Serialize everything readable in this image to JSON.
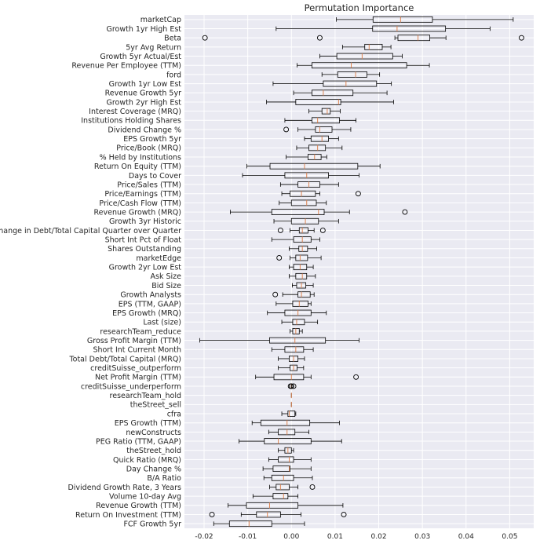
{
  "chart_data": {
    "type": "boxplot",
    "orientation": "horizontal",
    "title": "Permutation Importance",
    "xlabel": "",
    "ylabel": "",
    "xlim": [
      -0.0245,
      0.0555
    ],
    "xticks": [
      -0.02,
      -0.01,
      0.0,
      0.01,
      0.02,
      0.03,
      0.04,
      0.05
    ],
    "xtick_labels": [
      "-0.02",
      "-0.01",
      "0.00",
      "0.01",
      "0.02",
      "0.03",
      "0.04",
      "0.05"
    ],
    "grid": true,
    "colors": {
      "plot_background": "#eaeaf2",
      "grid": "#ffffff",
      "box": "#000000",
      "median": "#dd8452"
    },
    "features": [
      {
        "name": "marketCap",
        "wl": 0.0103,
        "q1": 0.0187,
        "med": 0.025,
        "q3": 0.0323,
        "wh": 0.0508,
        "fliers": []
      },
      {
        "name": "Growth 1yr High Est",
        "wl": -0.0035,
        "q1": 0.0186,
        "med": 0.0242,
        "q3": 0.0353,
        "wh": 0.0455,
        "fliers": []
      },
      {
        "name": "Beta",
        "wl": 0.0237,
        "q1": 0.0244,
        "med": 0.029,
        "q3": 0.0317,
        "wh": 0.0354,
        "fliers": [
          -0.0198,
          0.0065,
          0.0527
        ]
      },
      {
        "name": "5yr Avg Return",
        "wl": 0.0117,
        "q1": 0.0168,
        "med": 0.0178,
        "q3": 0.0208,
        "wh": 0.0228,
        "fliers": []
      },
      {
        "name": "Growth 5yr Actual/Est",
        "wl": 0.0065,
        "q1": 0.0104,
        "med": 0.0162,
        "q3": 0.0232,
        "wh": 0.0254,
        "fliers": []
      },
      {
        "name": "Revenue Per Employee (TTM)",
        "wl": 0.0013,
        "q1": 0.0047,
        "med": 0.0137,
        "q3": 0.0264,
        "wh": 0.0316,
        "fliers": []
      },
      {
        "name": "ford",
        "wl": 0.007,
        "q1": 0.0106,
        "med": 0.0147,
        "q3": 0.0173,
        "wh": 0.0202,
        "fliers": []
      },
      {
        "name": "Growth 1yr Low Est",
        "wl": -0.0042,
        "q1": 0.0073,
        "med": 0.0125,
        "q3": 0.0195,
        "wh": 0.0229,
        "fliers": []
      },
      {
        "name": "Revenue Growth 5yr",
        "wl": 0.0005,
        "q1": 0.0047,
        "med": 0.0073,
        "q3": 0.0141,
        "wh": 0.0219,
        "fliers": []
      },
      {
        "name": "Growth 2yr High Est",
        "wl": -0.0057,
        "q1": 0.001,
        "med": 0.0108,
        "q3": 0.0113,
        "wh": 0.0234,
        "fliers": []
      },
      {
        "name": "Interest Coverage (MRQ)",
        "wl": 0.004,
        "q1": 0.007,
        "med": 0.0082,
        "q3": 0.0089,
        "wh": 0.0112,
        "fliers": []
      },
      {
        "name": "Institutions Holding Shares",
        "wl": -0.0015,
        "q1": 0.0047,
        "med": 0.006,
        "q3": 0.011,
        "wh": 0.0148,
        "fliers": []
      },
      {
        "name": "Dividend Change %",
        "wl": 0.0015,
        "q1": 0.0055,
        "med": 0.0065,
        "q3": 0.0093,
        "wh": 0.0136,
        "fliers": [
          -0.0012
        ]
      },
      {
        "name": "EPS Growth 5yr",
        "wl": 0.003,
        "q1": 0.0045,
        "med": 0.007,
        "q3": 0.0085,
        "wh": 0.0108,
        "fliers": []
      },
      {
        "name": "Price/Book (MRQ)",
        "wl": 0.0012,
        "q1": 0.004,
        "med": 0.006,
        "q3": 0.0078,
        "wh": 0.0116,
        "fliers": []
      },
      {
        "name": "% Held by Institutions",
        "wl": -0.0012,
        "q1": 0.0038,
        "med": 0.0053,
        "q3": 0.0068,
        "wh": 0.0081,
        "fliers": []
      },
      {
        "name": "Return On Equity (TTM)",
        "wl": -0.0102,
        "q1": -0.0049,
        "med": 0.003,
        "q3": 0.0152,
        "wh": 0.0203,
        "fliers": []
      },
      {
        "name": "Days to Cover",
        "wl": -0.0112,
        "q1": -0.0015,
        "med": 0.0035,
        "q3": 0.0085,
        "wh": 0.0155,
        "fliers": []
      },
      {
        "name": "Price/Sales (TTM)",
        "wl": -0.0025,
        "q1": 0.0015,
        "med": 0.004,
        "q3": 0.0065,
        "wh": 0.0108,
        "fliers": []
      },
      {
        "name": "Price/Earnings (TTM)",
        "wl": -0.0022,
        "q1": -0.0003,
        "med": 0.0023,
        "q3": 0.0055,
        "wh": 0.0065,
        "fliers": [
          0.0153
        ]
      },
      {
        "name": "Price/Cash Flow (TTM)",
        "wl": -0.0028,
        "q1": 0.0,
        "med": 0.0035,
        "q3": 0.0057,
        "wh": 0.008,
        "fliers": []
      },
      {
        "name": "Revenue Growth (MRQ)",
        "wl": -0.014,
        "q1": -0.0045,
        "med": 0.0062,
        "q3": 0.0075,
        "wh": 0.0133,
        "fliers": [
          0.026
        ]
      },
      {
        "name": "Growth 3yr Historic",
        "wl": -0.004,
        "q1": 0.0,
        "med": 0.0032,
        "q3": 0.0062,
        "wh": 0.0108,
        "fliers": []
      },
      {
        "name": "Change in Debt/Total Capital Quarter over Quarter",
        "wl": -0.0003,
        "q1": 0.0018,
        "med": 0.0025,
        "q3": 0.0038,
        "wh": 0.0052,
        "fliers": [
          -0.0025,
          0.0072
        ]
      },
      {
        "name": "Short Int Pct of Float",
        "wl": -0.0045,
        "q1": 0.0005,
        "med": 0.0025,
        "q3": 0.0045,
        "wh": 0.0065,
        "fliers": []
      },
      {
        "name": "Shares Outstanding",
        "wl": -0.0005,
        "q1": 0.0017,
        "med": 0.0025,
        "q3": 0.0037,
        "wh": 0.0058,
        "fliers": []
      },
      {
        "name": "marketEdge",
        "wl": -0.0003,
        "q1": 0.001,
        "med": 0.002,
        "q3": 0.0037,
        "wh": 0.0068,
        "fliers": [
          -0.0028
        ]
      },
      {
        "name": "Growth 2yr Low Est",
        "wl": -0.0005,
        "q1": 0.0005,
        "med": 0.002,
        "q3": 0.0035,
        "wh": 0.005,
        "fliers": []
      },
      {
        "name": "Ask Size",
        "wl": -0.0005,
        "q1": 0.001,
        "med": 0.0025,
        "q3": 0.0035,
        "wh": 0.0055,
        "fliers": []
      },
      {
        "name": "Bid Size",
        "wl": 0.0002,
        "q1": 0.0012,
        "med": 0.0023,
        "q3": 0.0033,
        "wh": 0.005,
        "fliers": []
      },
      {
        "name": "Growth Analysts",
        "wl": -0.002,
        "q1": 0.0015,
        "med": 0.0023,
        "q3": 0.0043,
        "wh": 0.0052,
        "fliers": [
          -0.0037
        ]
      },
      {
        "name": "EPS (TTM, GAAP)",
        "wl": -0.0035,
        "q1": 0.0003,
        "med": 0.0018,
        "q3": 0.0038,
        "wh": 0.0045,
        "fliers": []
      },
      {
        "name": "EPS Growth (MRQ)",
        "wl": -0.0055,
        "q1": -0.0015,
        "med": 0.0015,
        "q3": 0.0045,
        "wh": 0.008,
        "fliers": []
      },
      {
        "name": "Last (size)",
        "wl": -0.0022,
        "q1": 0.0003,
        "med": 0.0012,
        "q3": 0.003,
        "wh": 0.006,
        "fliers": []
      },
      {
        "name": "researchTeam_reduce",
        "wl": -0.0003,
        "q1": 0.0003,
        "med": 0.001,
        "q3": 0.0018,
        "wh": 0.0025,
        "fliers": []
      },
      {
        "name": "Gross Profit Margin (TTM)",
        "wl": -0.021,
        "q1": -0.005,
        "med": 0.0008,
        "q3": 0.0078,
        "wh": 0.0155,
        "fliers": []
      },
      {
        "name": "Short Int Current Month",
        "wl": -0.0045,
        "q1": -0.0015,
        "med": 0.001,
        "q3": 0.0028,
        "wh": 0.005,
        "fliers": []
      },
      {
        "name": "Total Debt/Total Capital (MRQ)",
        "wl": -0.003,
        "q1": -0.0005,
        "med": 0.0005,
        "q3": 0.0015,
        "wh": 0.003,
        "fliers": []
      },
      {
        "name": "creditSuisse_outperform",
        "wl": -0.003,
        "q1": -0.0003,
        "med": 0.0005,
        "q3": 0.0013,
        "wh": 0.0028,
        "fliers": []
      },
      {
        "name": "Net Profit Margin (TTM)",
        "wl": -0.0082,
        "q1": -0.004,
        "med": 0.0,
        "q3": 0.0028,
        "wh": 0.0045,
        "fliers": [
          0.0148
        ]
      },
      {
        "name": "creditSuisse_underperform",
        "wl": 0.0,
        "q1": 0.0,
        "med": 0.0,
        "q3": 0.0,
        "wh": 0.0,
        "fliers": [
          -0.0002,
          0.0,
          0.0005
        ]
      },
      {
        "name": "researchTeam_hold",
        "wl": 0.0,
        "q1": 0.0,
        "med": 0.0,
        "q3": 0.0,
        "wh": 0.0,
        "fliers": []
      },
      {
        "name": "theStreet_sell",
        "wl": 0.0,
        "q1": 0.0,
        "med": 0.0,
        "q3": 0.0,
        "wh": 0.0,
        "fliers": []
      },
      {
        "name": "cfra",
        "wl": -0.0022,
        "q1": -0.0008,
        "med": -0.0005,
        "q3": 0.0008,
        "wh": 0.001,
        "fliers": []
      },
      {
        "name": "EPS Growth (TTM)",
        "wl": -0.009,
        "q1": -0.007,
        "med": -0.001,
        "q3": 0.0042,
        "wh": 0.011,
        "fliers": []
      },
      {
        "name": "newConstructs",
        "wl": -0.0052,
        "q1": -0.003,
        "med": -0.001,
        "q3": 0.0008,
        "wh": 0.004,
        "fliers": []
      },
      {
        "name": "PEG Ratio (TTM, GAAP)",
        "wl": -0.012,
        "q1": -0.0062,
        "med": -0.003,
        "q3": 0.0045,
        "wh": 0.0115,
        "fliers": []
      },
      {
        "name": "theStreet_hold",
        "wl": -0.003,
        "q1": -0.0015,
        "med": -0.0008,
        "q3": 0.0,
        "wh": 0.0005,
        "fliers": []
      },
      {
        "name": "Quick Ratio (MRQ)",
        "wl": -0.0052,
        "q1": -0.003,
        "med": -0.0005,
        "q3": 0.0005,
        "wh": 0.0045,
        "fliers": []
      },
      {
        "name": "Day Change %",
        "wl": -0.0065,
        "q1": -0.0042,
        "med": -0.0005,
        "q3": -0.0003,
        "wh": 0.0045,
        "fliers": []
      },
      {
        "name": "B/A Ratio",
        "wl": -0.0063,
        "q1": -0.0045,
        "med": -0.0018,
        "q3": 0.0005,
        "wh": 0.0048,
        "fliers": []
      },
      {
        "name": "Dividend Growth Rate, 3 Years",
        "wl": -0.005,
        "q1": -0.0035,
        "med": -0.0025,
        "q3": -0.0005,
        "wh": 0.0015,
        "fliers": [
          0.0048
        ]
      },
      {
        "name": "Volume 10-day Avg",
        "wl": -0.0088,
        "q1": -0.0042,
        "med": -0.0018,
        "q3": -0.0008,
        "wh": 0.0015,
        "fliers": []
      },
      {
        "name": "Revenue Growth (TTM)",
        "wl": -0.0145,
        "q1": -0.0103,
        "med": -0.005,
        "q3": 0.0015,
        "wh": 0.0118,
        "fliers": []
      },
      {
        "name": "Return On Investment (TTM)",
        "wl": -0.0115,
        "q1": -0.008,
        "med": -0.0055,
        "q3": -0.0025,
        "wh": 0.0022,
        "fliers": [
          -0.0182,
          0.012
        ]
      },
      {
        "name": "FCF Growth 5yr",
        "wl": -0.0178,
        "q1": -0.0142,
        "med": -0.0097,
        "q3": -0.0045,
        "wh": 0.003,
        "fliers": []
      }
    ]
  }
}
